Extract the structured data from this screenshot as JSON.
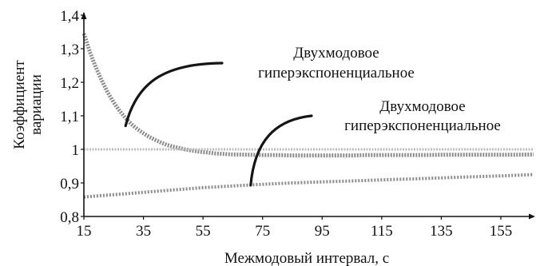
{
  "chart_data": {
    "type": "line",
    "title": "",
    "xlabel": "Межмодовый интервал, с",
    "ylabel_lines": [
      "Коэффициент",
      "вариации"
    ],
    "xlim": [
      15,
      166
    ],
    "ylim": [
      0.8,
      1.4
    ],
    "x_ticks": [
      15,
      35,
      55,
      75,
      95,
      115,
      135,
      155
    ],
    "y_ticks": [
      {
        "value": 0.8,
        "label": "0,8"
      },
      {
        "value": 0.9,
        "label": "0,9"
      },
      {
        "value": 1.0,
        "label": "1"
      },
      {
        "value": 1.1,
        "label": "1,1"
      },
      {
        "value": 1.2,
        "label": "1,2"
      },
      {
        "value": 1.3,
        "label": "1,3"
      },
      {
        "value": 1.4,
        "label": "1,4"
      }
    ],
    "grid": false,
    "colors": {
      "series": "#8c8c8c",
      "reference": "#bdbdbd",
      "axis": "#111111"
    },
    "series": [
      {
        "x": [
          15,
          17,
          19,
          21,
          23,
          25,
          27,
          29,
          31,
          33,
          35,
          37,
          39,
          41,
          43,
          45,
          47,
          49,
          51,
          53,
          55,
          57,
          59,
          61,
          63,
          65,
          70,
          75,
          80,
          85,
          90,
          95,
          100,
          105,
          110,
          115,
          120,
          125,
          130,
          135,
          140,
          145,
          150,
          155,
          160,
          166
        ],
        "values": [
          1.345,
          1.29,
          1.245,
          1.205,
          1.17,
          1.14,
          1.115,
          1.093,
          1.075,
          1.06,
          1.048,
          1.037,
          1.028,
          1.02,
          1.013,
          1.008,
          1.004,
          1.0,
          0.997,
          0.994,
          0.992,
          0.99,
          0.988,
          0.987,
          0.986,
          0.985,
          0.984,
          0.983,
          0.983,
          0.982,
          0.982,
          0.982,
          0.982,
          0.982,
          0.983,
          0.983,
          0.983,
          0.983,
          0.983,
          0.984,
          0.984,
          0.984,
          0.984,
          0.984,
          0.984,
          0.985
        ]
      },
      {
        "x": [
          15,
          25,
          35,
          45,
          55,
          65,
          75,
          85,
          95,
          105,
          115,
          125,
          135,
          145,
          155,
          166
        ],
        "values": [
          0.858,
          0.865,
          0.872,
          0.879,
          0.886,
          0.891,
          0.896,
          0.9,
          0.903,
          0.906,
          0.909,
          0.912,
          0.915,
          0.918,
          0.921,
          0.925
        ]
      },
      {
        "x": [
          15,
          166
        ],
        "values": [
          1.0,
          1.0
        ]
      }
    ],
    "annotations": [
      {
        "lines": [
          "Двухмодовое",
          "гиперэкспоненциальное"
        ],
        "points_to": {
          "x": 29,
          "y": 1.07
        }
      },
      {
        "lines": [
          "Двухмодовое",
          "гиперэкспоненциальное"
        ],
        "points_to": {
          "x": 71,
          "y": 0.893
        }
      }
    ]
  }
}
